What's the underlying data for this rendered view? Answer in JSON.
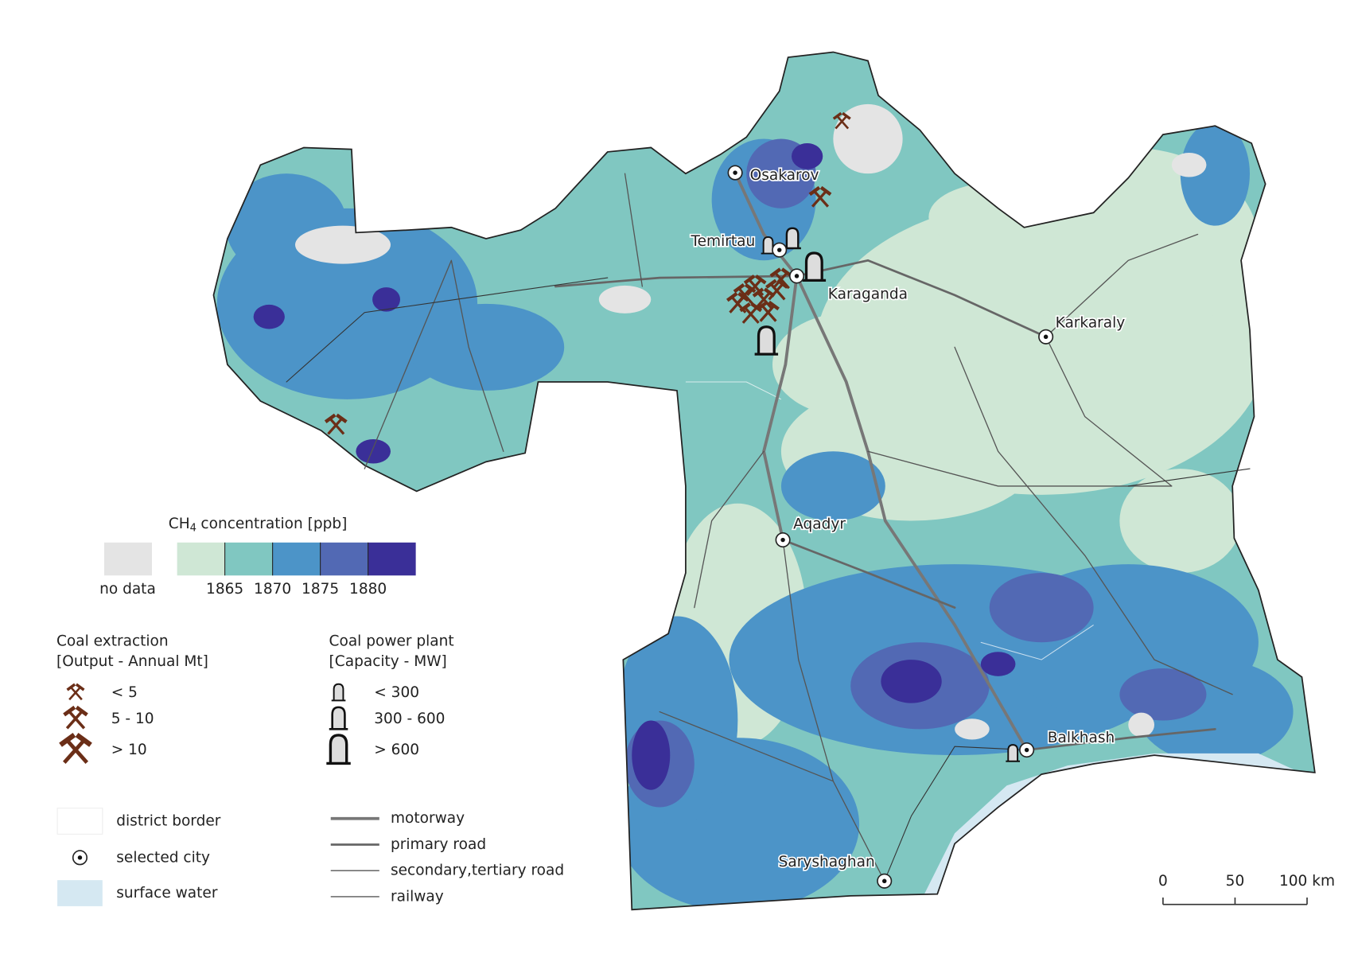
{
  "legend": {
    "title": {
      "main": "CH",
      "sub": "4",
      "rest": "concentration [ppb]"
    },
    "no_data": "no data",
    "no_data_color": "#e4e4e4",
    "colors": [
      "#cfe7d5",
      "#80c7c1",
      "#4c94c8",
      "#5269b4",
      "#3a2f98"
    ],
    "ticks": [
      1865,
      1870,
      1875,
      1880
    ]
  },
  "coal_extraction": {
    "title": [
      "Coal extraction",
      "[Output - Annual Mt]"
    ],
    "classes": [
      "< 5",
      "5 - 10",
      "> 10"
    ],
    "color": "#6b2e17"
  },
  "coal_power_plant": {
    "title": [
      "Coal power plant",
      "[Capacity - MW]"
    ],
    "classes": [
      "< 300",
      "300 - 600",
      "> 600"
    ]
  },
  "features": [
    "district border",
    "selected city",
    "surface water"
  ],
  "water_color": "#d5e8f2",
  "roads": [
    "motorway",
    "primary road",
    "secondary,tertiary road",
    "railway"
  ],
  "cities": [
    "Osakarov",
    "Temirtau",
    "Karaganda",
    "Karkaraly",
    "Aqadyr",
    "Balkhash",
    "Saryshaghan"
  ],
  "scale_bar": {
    "ticks": [
      0,
      50,
      {
        "value": 100,
        "label": "100 km"
      }
    ]
  }
}
